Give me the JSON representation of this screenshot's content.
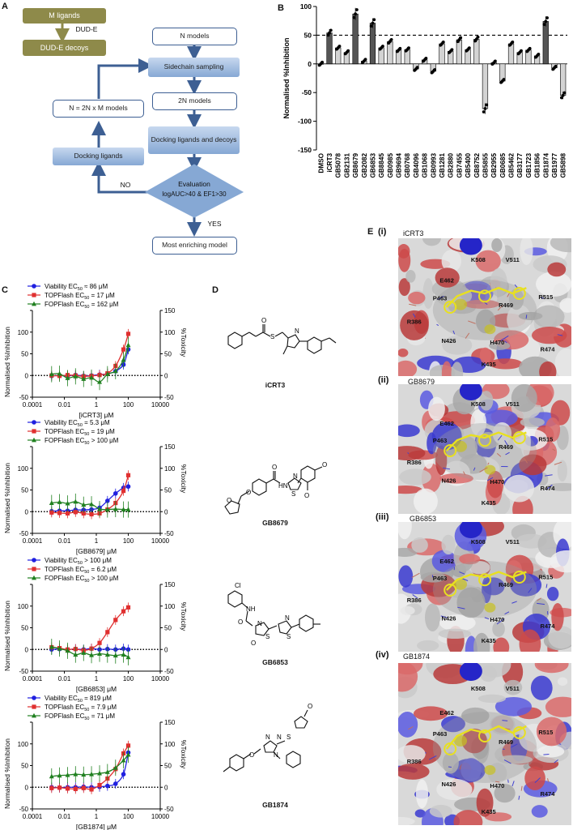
{
  "panels": {
    "A": "A",
    "B": "B",
    "C": "C",
    "D": "D",
    "E": "E"
  },
  "flowchart": {
    "m_ligands": "M ligands",
    "dude": "DUD-E",
    "dude_decoys": "DUD-E decoys",
    "n_models": "N models",
    "sidechain": "Sidechain sampling",
    "two_n": "2N models",
    "n_eq": "N = 2N x M models",
    "docking_ligands": "Docking ligands",
    "docking_ligands_decoys": "Docking ligands and decoys",
    "evaluation": "Evaluation",
    "criteria": "logAUC>40 & EF1>30",
    "no": "NO",
    "yes": "YES",
    "most": "Most enriching model",
    "colors": {
      "olive": "#8e8a4a",
      "blue": "#3d5f93",
      "fill": "#9db9dd"
    }
  },
  "chart_data": [
    {
      "type": "bar",
      "ylabel": "Normalised %Inhibition",
      "ylim": [
        -150,
        100
      ],
      "yticks": [
        "-150",
        "-100",
        "-50",
        "0",
        "50",
        "100"
      ],
      "threshold": 50,
      "categories": [
        "DMSO",
        "iCRT3",
        "GB5078",
        "GB2131",
        "GB8679",
        "GB2082",
        "GB6853",
        "GB8845",
        "GB0985",
        "GB9694",
        "GB0768",
        "GB4096",
        "GB1068",
        "GB0993",
        "GB1281",
        "GB2880",
        "GB7455",
        "GB5400",
        "GB8752",
        "GB5855",
        "GB2955",
        "GB0685",
        "GB5462",
        "GB3177",
        "GB1723",
        "GB1856",
        "GB1874",
        "GB1977",
        "GB5898"
      ],
      "values": [
        0,
        54,
        28,
        20,
        87,
        5,
        71,
        28,
        39,
        24,
        25,
        -9,
        7,
        -13,
        35,
        22,
        42,
        25,
        43,
        -78,
        2,
        -30,
        35,
        20,
        24,
        14,
        74,
        -7,
        -55
      ],
      "dark_bars": [
        "iCRT3",
        "GB8679",
        "GB6853",
        "GB1874"
      ],
      "colors": {
        "dark": "#555555",
        "light": "#d3d3d3",
        "threshold": "#000000"
      }
    },
    {
      "type": "line",
      "compound": "iCRT3",
      "xlabel": "[iCRT3] μM",
      "ylabel": "Normalised %Inhibition",
      "y2label": "%Toxicity",
      "xlim": [
        0.0001,
        10000
      ],
      "ylim": [
        -50,
        150
      ],
      "xticks": [
        "0.0001",
        "0.01",
        "1",
        "100",
        "10000"
      ],
      "yticks": [
        "-50",
        "0",
        "50",
        "100",
        "150"
      ],
      "legend": [
        "Viability EC50 ≈ 86 μM",
        "TOPFlash EC50 = 17 μM",
        "FOPFlash EC50 = 162 μM"
      ],
      "series": [
        {
          "name": "Viability",
          "color": "#2020e0",
          "x": [
            0.0016,
            0.005,
            0.016,
            0.05,
            0.16,
            0.5,
            1.6,
            5,
            16,
            50,
            100
          ],
          "y": [
            -1,
            0,
            -1,
            1,
            -1,
            0,
            2,
            4,
            10,
            25,
            60
          ]
        },
        {
          "name": "TOPFlash",
          "color": "#e03030",
          "x": [
            0.0016,
            0.005,
            0.016,
            0.05,
            0.16,
            0.5,
            1.6,
            5,
            16,
            50,
            100
          ],
          "y": [
            0,
            -1,
            1,
            0,
            -2,
            -1,
            1,
            5,
            22,
            60,
            96
          ]
        },
        {
          "name": "FOPFlash",
          "color": "#208020",
          "x": [
            0.0016,
            0.005,
            0.016,
            0.05,
            0.16,
            0.5,
            1.6,
            5,
            16,
            50,
            100
          ],
          "y": [
            3,
            4,
            -6,
            -2,
            -8,
            -5,
            -15,
            3,
            10,
            36,
            70
          ]
        }
      ]
    },
    {
      "type": "line",
      "compound": "GB8679",
      "xlabel": "[GB8679] μM",
      "ylabel": "Normalised %Inhibition",
      "y2label": "%Toxicity",
      "xlim": [
        0.0001,
        10000
      ],
      "ylim": [
        -50,
        150
      ],
      "xticks": [
        "0.0001",
        "0.01",
        "1",
        "100",
        "10000"
      ],
      "yticks": [
        "-50",
        "0",
        "50",
        "100",
        "150"
      ],
      "legend": [
        "Viability EC50 = 5.3 μM",
        "TOPFlash EC50 = 19 μM",
        "FOPFlash EC50 > 100 μM"
      ],
      "series": [
        {
          "name": "Viability",
          "color": "#2020e0",
          "x": [
            0.0016,
            0.005,
            0.016,
            0.05,
            0.16,
            0.5,
            1.6,
            5,
            16,
            50,
            100
          ],
          "y": [
            1,
            2,
            2,
            4,
            4,
            5,
            9,
            25,
            42,
            55,
            58
          ]
        },
        {
          "name": "TOPFlash",
          "color": "#e03030",
          "x": [
            0.0016,
            0.005,
            0.016,
            0.05,
            0.16,
            0.5,
            1.6,
            5,
            16,
            50,
            100
          ],
          "y": [
            -2,
            -3,
            -4,
            -1,
            -4,
            -6,
            -4,
            5,
            20,
            48,
            84
          ]
        },
        {
          "name": "FOPFlash",
          "color": "#208020",
          "x": [
            0.0016,
            0.005,
            0.016,
            0.05,
            0.16,
            0.5,
            1.6,
            5,
            16,
            50,
            100
          ],
          "y": [
            20,
            22,
            19,
            23,
            16,
            17,
            6,
            5,
            6,
            5,
            5
          ]
        }
      ]
    },
    {
      "type": "line",
      "compound": "GB6853",
      "xlabel": "[GB6853] μM",
      "ylabel": "Normalised %Inhibition",
      "y2label": "%Toxicity",
      "xlim": [
        0.0001,
        10000
      ],
      "ylim": [
        -50,
        150
      ],
      "xticks": [
        "0.0001",
        "0.01",
        "1",
        "100",
        "10000"
      ],
      "yticks": [
        "-50",
        "0",
        "50",
        "100",
        "150"
      ],
      "legend": [
        "Viability EC50 > 100 μM",
        "TOPFlash EC50 = 6.2 μM",
        "FOPFlash EC50 > 100 μM"
      ],
      "series": [
        {
          "name": "Viability",
          "color": "#2020e0",
          "x": [
            0.0016,
            0.005,
            0.016,
            0.05,
            0.16,
            0.5,
            1.6,
            5,
            16,
            50,
            100
          ],
          "y": [
            0,
            1,
            0,
            1,
            0,
            2,
            0,
            1,
            0,
            2,
            0
          ]
        },
        {
          "name": "TOPFlash",
          "color": "#e03030",
          "x": [
            0.0016,
            0.005,
            0.016,
            0.05,
            0.16,
            0.5,
            1.6,
            5,
            16,
            50,
            100
          ],
          "y": [
            5,
            3,
            0,
            1,
            -2,
            2,
            15,
            40,
            68,
            88,
            97
          ]
        },
        {
          "name": "FOPFlash",
          "color": "#208020",
          "x": [
            0.0016,
            0.005,
            0.016,
            0.05,
            0.16,
            0.5,
            1.6,
            5,
            16,
            50,
            100
          ],
          "y": [
            6,
            2,
            -3,
            -12,
            -8,
            -13,
            -10,
            -12,
            -14,
            -12,
            -18
          ]
        }
      ]
    },
    {
      "type": "line",
      "compound": "GB1874",
      "xlabel": "[GB1874] μM",
      "ylabel": "Normalised %Inhibition",
      "y2label": "%Toxicity",
      "xlim": [
        0.0001,
        10000
      ],
      "ylim": [
        -50,
        150
      ],
      "xticks": [
        "0.0001",
        "0.01",
        "1",
        "100",
        "10000"
      ],
      "yticks": [
        "-50",
        "0",
        "50",
        "100",
        "150"
      ],
      "legend": [
        "Viability EC50 = 819 μM",
        "TOPFlash EC50 = 7.9 μM",
        "FOPFlash EC50 = 71 μM"
      ],
      "series": [
        {
          "name": "Viability",
          "color": "#2020e0",
          "x": [
            0.0016,
            0.005,
            0.016,
            0.05,
            0.16,
            0.5,
            1.6,
            5,
            16,
            50,
            100
          ],
          "y": [
            0,
            -1,
            0,
            0,
            1,
            0,
            1,
            3,
            8,
            30,
            80
          ]
        },
        {
          "name": "TOPFlash",
          "color": "#e03030",
          "x": [
            0.0016,
            0.005,
            0.016,
            0.05,
            0.16,
            0.5,
            1.6,
            5,
            16,
            50,
            100
          ],
          "y": [
            -2,
            -1,
            -3,
            -4,
            -2,
            -5,
            5,
            20,
            42,
            78,
            96
          ]
        },
        {
          "name": "FOPFlash",
          "color": "#208020",
          "x": [
            0.0016,
            0.005,
            0.016,
            0.05,
            0.16,
            0.5,
            1.6,
            5,
            16,
            50,
            100
          ],
          "y": [
            25,
            27,
            28,
            30,
            29,
            30,
            32,
            35,
            45,
            62,
            75
          ]
        }
      ]
    }
  ],
  "structures": [
    {
      "name": "iCRT3",
      "atoms": [
        "S",
        "N",
        "O"
      ]
    },
    {
      "name": "GB8679",
      "atoms": [
        "O",
        "O",
        "O",
        "O",
        "HN",
        "S",
        "N",
        "O"
      ]
    },
    {
      "name": "GB6853",
      "atoms": [
        "Cl",
        "NH",
        "O",
        "O",
        "N",
        "S",
        "N",
        "S"
      ]
    },
    {
      "name": "GB1874",
      "atoms": [
        "O",
        "N",
        "N",
        "N",
        "S",
        "O"
      ]
    }
  ],
  "docking": [
    {
      "roman": "(i)",
      "compound": "iCRT3"
    },
    {
      "roman": "(ii)",
      "compound": "GB8679"
    },
    {
      "roman": "(iii)",
      "compound": "GB6853"
    },
    {
      "roman": "(iv)",
      "compound": "GB1874"
    }
  ],
  "residues": [
    "K508",
    "V511",
    "E462",
    "P463",
    "R469",
    "R515",
    "R386",
    "N426",
    "H470",
    "R474",
    "K435"
  ]
}
